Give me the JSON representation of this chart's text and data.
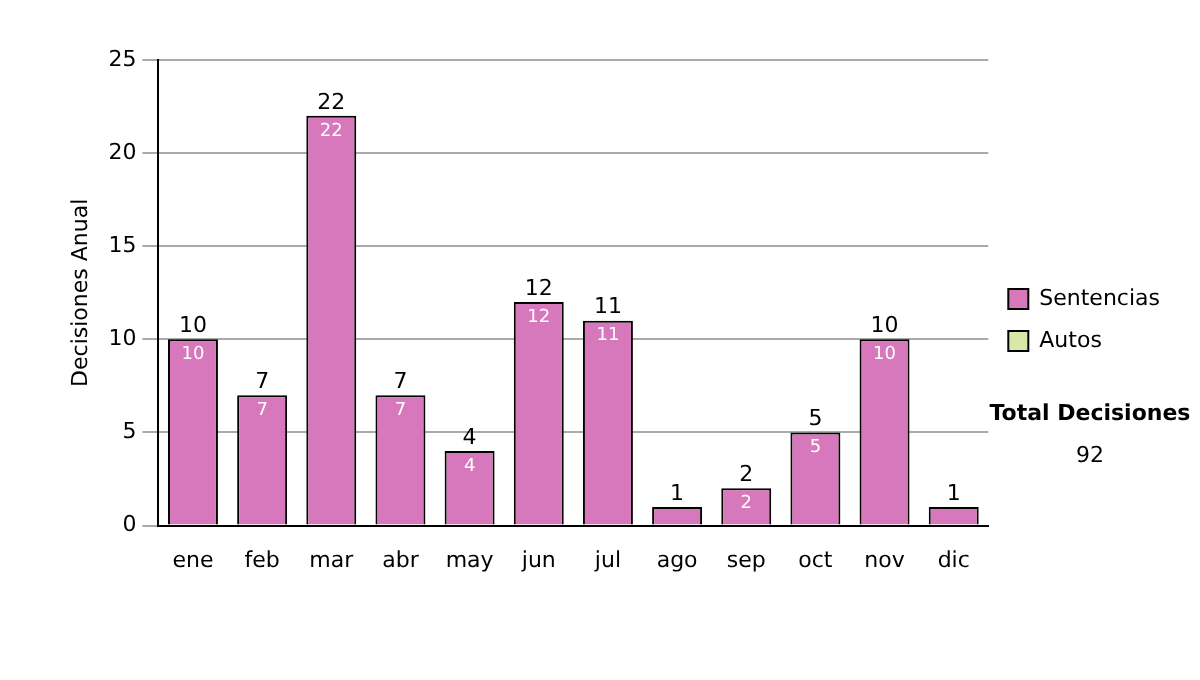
{
  "chart_data": {
    "type": "bar",
    "stacked": true,
    "ylabel": "Decisiones Anual",
    "categories": [
      "ene",
      "feb",
      "mar",
      "abr",
      "may",
      "jun",
      "jul",
      "ago",
      "sep",
      "oct",
      "nov",
      "dic"
    ],
    "series": [
      {
        "name": "Sentencias",
        "color": "#d878bc",
        "values": [
          10,
          7,
          22,
          7,
          4,
          12,
          11,
          1,
          2,
          5,
          10,
          1
        ],
        "value_labels": [
          "10",
          "7",
          "22",
          "7",
          "4",
          "12",
          "11",
          null,
          "2",
          "5",
          "10",
          null
        ]
      },
      {
        "name": "Autos",
        "color": "#d8e8a8",
        "values": [
          0,
          0,
          0,
          0,
          0,
          0,
          0,
          0,
          0,
          0,
          0,
          0
        ]
      }
    ],
    "totals": [
      "10",
      "7",
      "22",
      "7",
      "4",
      "12",
      "11",
      "1",
      "2",
      "5",
      "10",
      "1"
    ],
    "ylim": [
      0,
      25
    ],
    "yticks": [
      0,
      5,
      10,
      15,
      20,
      25
    ],
    "grid": "y",
    "legend": "right",
    "annotations": [
      "Total Decisiones",
      "92"
    ]
  }
}
